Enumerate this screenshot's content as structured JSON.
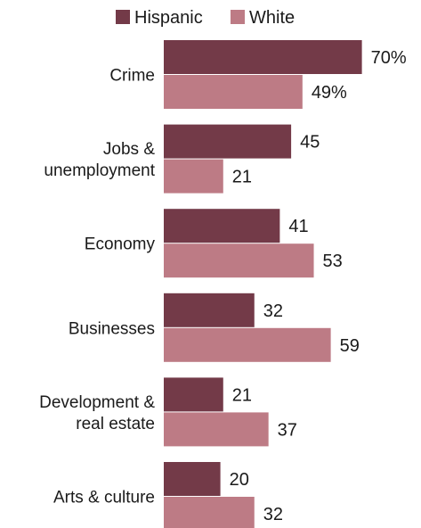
{
  "chart_data": {
    "type": "bar",
    "orientation": "horizontal",
    "categories": [
      [
        "Crime"
      ],
      [
        "Jobs &",
        "unemployment"
      ],
      [
        "Economy"
      ],
      [
        "Businesses"
      ],
      [
        "Development &",
        "real estate"
      ],
      [
        "Arts & culture"
      ]
    ],
    "series": [
      {
        "name": "Hispanic",
        "color": "#733a48",
        "values": [
          70,
          45,
          41,
          32,
          21,
          20
        ],
        "labels": [
          "70%",
          "45",
          "41",
          "32",
          "21",
          "20"
        ]
      },
      {
        "name": "White",
        "color": "#bd7b85",
        "values": [
          49,
          21,
          53,
          59,
          37,
          32
        ],
        "labels": [
          "49%",
          "21",
          "53",
          "59",
          "37",
          "32"
        ]
      }
    ],
    "xlim": [
      0,
      100
    ],
    "grid": false,
    "legend": "top"
  }
}
